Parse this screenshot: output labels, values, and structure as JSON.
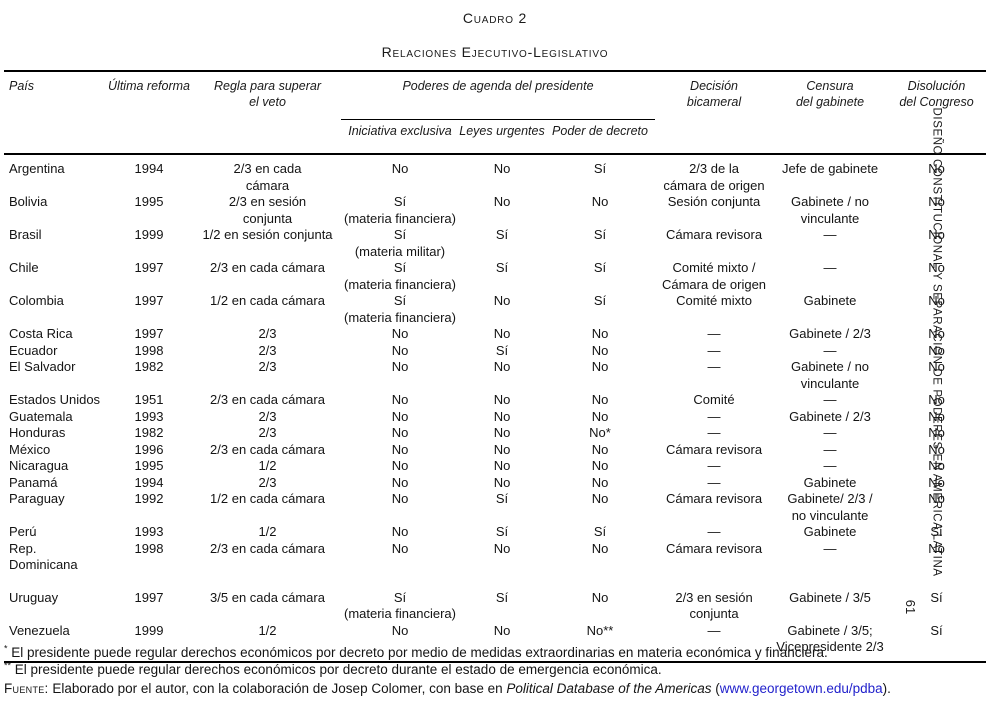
{
  "page": {
    "title": "Cuadro 2",
    "subtitle": "Relaciones Ejecutivo-Legislativo",
    "side_label": "DISEÑO CONSTITUCIONAL Y SEPARACIÓN DE PODERES EN AMÉRICA LATINA",
    "page_number": "61"
  },
  "table": {
    "column_headers": {
      "pais": "País",
      "ultima_reforma": "Última reforma",
      "regla_veto": "Regla para superar\nel veto",
      "decision_bicameral": "Decisión\nbicameral",
      "censura_gabinete": "Censura\ndel gabinete",
      "disolucion_congreso": "Disolución\ndel Congreso"
    },
    "group_header": "Poderes de agenda del presidente",
    "sub_headers": [
      "Iniciativa exclusiva",
      "Leyes urgentes",
      "Poder de decreto"
    ],
    "rows": [
      {
        "cells": [
          "Argentina",
          "1994",
          "2/3 en cada\ncámara",
          "No",
          "No",
          "Sí",
          "2/3 de la\ncámara de origen",
          "Jefe de gabinete",
          "No"
        ]
      },
      {
        "cells": [
          "Bolivia",
          "1995",
          "2/3 en sesión\nconjunta",
          "Sí\n(materia financiera)",
          "No",
          "No",
          "Sesión conjunta",
          "Gabinete / no\nvinculante",
          "No"
        ]
      },
      {
        "cells": [
          "Brasil",
          "1999",
          "1/2 en sesión conjunta",
          "Sí\n(materia militar)",
          "Sí",
          "Sí",
          "Cámara revisora",
          "—",
          "No"
        ]
      },
      {
        "cells": [
          "Chile",
          "1997",
          "2/3 en cada cámara",
          "Sí\n(materia financiera)",
          "Sí",
          "Sí",
          "Comité mixto /\nCámara de origen",
          "—",
          "No"
        ]
      },
      {
        "cells": [
          "Colombia",
          "1997",
          "1/2 en cada cámara",
          "Sí\n(materia financiera)",
          "No",
          "Sí",
          "Comité mixto",
          "Gabinete",
          "No"
        ]
      },
      {
        "cells": [
          "Costa Rica",
          "1997",
          "2/3",
          "No",
          "No",
          "No",
          "—",
          "Gabinete / 2/3",
          "No"
        ]
      },
      {
        "cells": [
          "Ecuador",
          "1998",
          "2/3",
          "No",
          "Sí",
          "No",
          "—",
          "—",
          "No"
        ]
      },
      {
        "cells": [
          "El Salvador",
          "1982",
          "2/3",
          "No",
          "No",
          "No",
          "—",
          "Gabinete / no\nvinculante",
          "No"
        ]
      },
      {
        "cells": [
          "Estados Unidos",
          "1951",
          "2/3 en cada cámara",
          "No",
          "No",
          "No",
          "Comité",
          "—",
          "No"
        ]
      },
      {
        "cells": [
          "Guatemala",
          "1993",
          "2/3",
          "No",
          "No",
          "No",
          "—",
          "Gabinete / 2/3",
          "No"
        ]
      },
      {
        "cells": [
          "Honduras",
          "1982",
          "2/3",
          "No",
          "No",
          "No*",
          "—",
          "—",
          "No"
        ]
      },
      {
        "cells": [
          "México",
          "1996",
          "2/3 en cada cámara",
          "No",
          "No",
          "No",
          "Cámara revisora",
          "—",
          "No"
        ]
      },
      {
        "cells": [
          "Nicaragua",
          "1995",
          "1/2",
          "No",
          "No",
          "No",
          "—",
          "—",
          "No"
        ]
      },
      {
        "cells": [
          "Panamá",
          "1994",
          "2/3",
          "No",
          "No",
          "No",
          "—",
          "Gabinete",
          "No"
        ]
      },
      {
        "cells": [
          "Paraguay",
          "1992",
          "1/2 en cada cámara",
          "No",
          "Sí",
          "No",
          "Cámara revisora",
          "Gabinete/ 2/3 /\nno vinculante",
          "No"
        ]
      },
      {
        "cells": [
          "Perú",
          "1993",
          "1/2",
          "No",
          "Sí",
          "Sí",
          "—",
          "Gabinete",
          "Sí"
        ]
      },
      {
        "cells": [
          "Rep. Dominicana",
          "1998",
          "2/3 en cada cámara",
          "No",
          "No",
          "No",
          "Cámara revisora",
          "—",
          "No"
        ]
      },
      {
        "cells": [
          "Uruguay",
          "1997",
          "3/5 en cada cámara",
          "Sí\n(materia financiera)",
          "Sí",
          "No",
          "2/3 en sesión\nconjunta",
          "Gabinete / 3/5",
          "Sí"
        ],
        "gap_before": true
      },
      {
        "cells": [
          "Venezuela",
          "1999",
          "1/2",
          "No",
          "No",
          "No**",
          "—",
          "Gabinete / 3/5;\nVicepresidente 2/3",
          "Sí"
        ]
      }
    ]
  },
  "footnotes": [
    {
      "marker": "*",
      "text": " El presidente puede regular derechos económicos por decreto por medio de medidas extraordinarias en materia económica y financiera."
    },
    {
      "marker": "**",
      "text": " El presidente puede regular derechos económicos por decreto durante el estado de emergencia económica."
    }
  ],
  "source": {
    "label": "Fuente:",
    "text": " Elaborado por el autor, con la colaboración de Josep Colomer, con base en ",
    "work": "Political Database of the Americas",
    "pre_link": " (",
    "link": "www.georgetown.edu/pdba",
    "post_link": ")."
  }
}
